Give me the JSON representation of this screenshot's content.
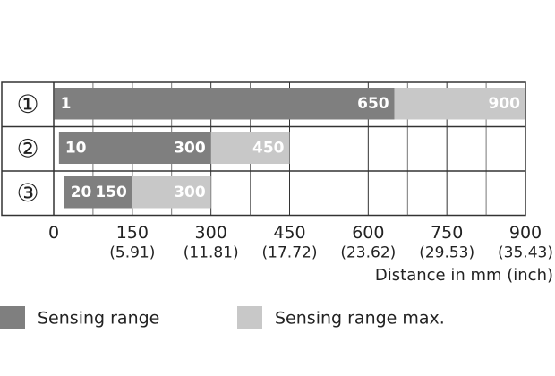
{
  "chart_data": {
    "type": "range_bar",
    "categories": [
      "①",
      "②",
      "③"
    ],
    "series": [
      {
        "name": "Sensing range",
        "color": "#7f7f7f",
        "start": [
          1,
          10,
          20
        ],
        "values": [
          650,
          300,
          150
        ]
      },
      {
        "name": "Sensing range max.",
        "color": "#c8c8c8",
        "values": [
          900,
          450,
          300
        ]
      }
    ],
    "xlim": [
      0,
      900
    ],
    "xticks": [
      0,
      150,
      300,
      450,
      600,
      750,
      900
    ],
    "xtick_inch_labels": [
      {
        "value": 150,
        "label": "(5.91)"
      },
      {
        "value": 300,
        "label": "(11.81)"
      },
      {
        "value": 450,
        "label": "(17.72)"
      },
      {
        "value": 600,
        "label": "(23.62)"
      },
      {
        "value": 750,
        "label": "(29.53)"
      },
      {
        "value": 900,
        "label": "(35.43)"
      }
    ],
    "minor_xticks": [
      75,
      225,
      375,
      525,
      675,
      825
    ],
    "x_label": "Distance in mm (inch)",
    "grid": true
  }
}
